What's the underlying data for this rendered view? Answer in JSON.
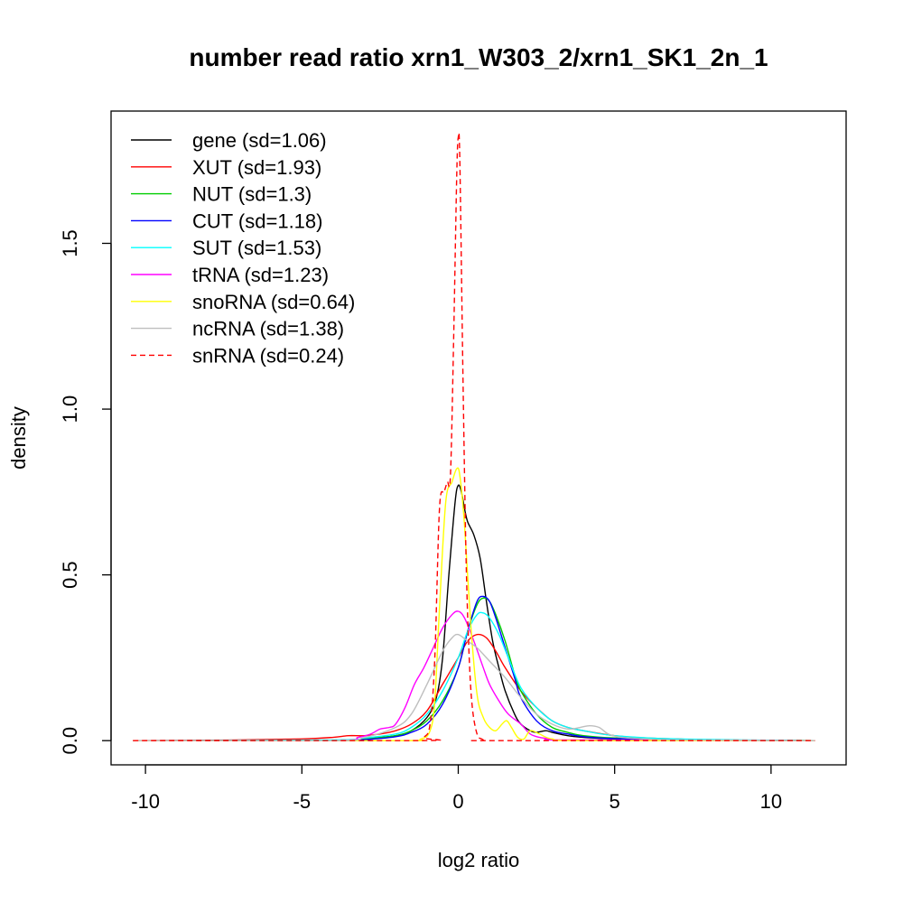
{
  "chart_data": {
    "type": "line",
    "title": "number read ratio xrn1_W303_2/xrn1_SK1_2n_1",
    "xlabel": "log2 ratio",
    "ylabel": "density",
    "xlim": [
      -11.1,
      12.4
    ],
    "ylim": [
      -0.073,
      1.899
    ],
    "xticks": [
      -10,
      -5,
      0,
      5,
      10
    ],
    "yticks": [
      0.0,
      0.5,
      1.0,
      1.5
    ],
    "grid": false,
    "legend_position": "top-left",
    "series": [
      {
        "name": "gene (sd=1.06)",
        "color": "#000000",
        "dash": false,
        "x": [
          -10.4,
          -4,
          -3,
          -2.5,
          -2,
          -1.5,
          -1,
          -0.7,
          -0.5,
          -0.3,
          -0.1,
          0,
          0.1,
          0.2,
          0.3,
          0.5,
          0.7,
          0.9,
          1.1,
          1.3,
          1.5,
          1.8,
          2,
          2.3,
          2.5,
          2.8,
          3,
          3.5,
          4,
          5,
          7,
          11.4
        ],
        "y": [
          0,
          0,
          0.005,
          0.01,
          0.015,
          0.03,
          0.07,
          0.13,
          0.25,
          0.5,
          0.72,
          0.77,
          0.75,
          0.7,
          0.66,
          0.62,
          0.55,
          0.42,
          0.3,
          0.22,
          0.15,
          0.08,
          0.05,
          0.03,
          0.025,
          0.03,
          0.025,
          0.015,
          0.01,
          0.005,
          0.002,
          0
        ]
      },
      {
        "name": "XUT (sd=1.93)",
        "color": "#ff0000",
        "dash": false,
        "x": [
          -10.4,
          -7,
          -5,
          -4,
          -3.5,
          -3,
          -2.5,
          -2,
          -1.5,
          -1,
          -0.5,
          0,
          0.3,
          0.6,
          0.9,
          1.2,
          1.5,
          2,
          2.5,
          3,
          3.5,
          4,
          5,
          6,
          7,
          8,
          11.4
        ],
        "y": [
          0,
          0.002,
          0.005,
          0.01,
          0.015,
          0.015,
          0.02,
          0.03,
          0.05,
          0.09,
          0.17,
          0.25,
          0.3,
          0.32,
          0.31,
          0.27,
          0.22,
          0.15,
          0.1,
          0.06,
          0.04,
          0.03,
          0.015,
          0.008,
          0.005,
          0.002,
          0
        ]
      },
      {
        "name": "NUT (sd=1.3)",
        "color": "#00cd00",
        "dash": false,
        "x": [
          -10.4,
          -4,
          -3,
          -2,
          -1.5,
          -1,
          -0.5,
          0,
          0.3,
          0.6,
          0.8,
          1,
          1.2,
          1.5,
          1.8,
          2,
          2.5,
          3,
          3.5,
          4,
          5,
          7,
          11.4
        ],
        "y": [
          0,
          0,
          0.005,
          0.015,
          0.03,
          0.06,
          0.12,
          0.22,
          0.33,
          0.41,
          0.43,
          0.42,
          0.38,
          0.3,
          0.2,
          0.15,
          0.08,
          0.04,
          0.025,
          0.015,
          0.008,
          0.003,
          0
        ]
      },
      {
        "name": "CUT (sd=1.18)",
        "color": "#0000ff",
        "dash": false,
        "x": [
          -10.4,
          -4,
          -3,
          -2,
          -1.5,
          -1,
          -0.5,
          0,
          0.3,
          0.6,
          0.8,
          1,
          1.2,
          1.5,
          1.8,
          2,
          2.5,
          3,
          3.5,
          4,
          5,
          7,
          11.4
        ],
        "y": [
          0,
          0,
          0.003,
          0.012,
          0.025,
          0.05,
          0.11,
          0.22,
          0.33,
          0.42,
          0.435,
          0.42,
          0.37,
          0.28,
          0.19,
          0.13,
          0.06,
          0.03,
          0.02,
          0.012,
          0.006,
          0.002,
          0
        ]
      },
      {
        "name": "SUT (sd=1.53)",
        "color": "#00ffff",
        "dash": false,
        "x": [
          -10.4,
          -4,
          -3,
          -2,
          -1.5,
          -1,
          -0.5,
          0,
          0.3,
          0.6,
          0.8,
          1,
          1.3,
          1.6,
          2,
          2.5,
          3,
          3.5,
          4,
          5,
          7,
          11.4
        ],
        "y": [
          0,
          0.002,
          0.008,
          0.02,
          0.04,
          0.08,
          0.15,
          0.25,
          0.33,
          0.38,
          0.385,
          0.37,
          0.32,
          0.25,
          0.16,
          0.1,
          0.06,
          0.04,
          0.03,
          0.015,
          0.005,
          0
        ]
      },
      {
        "name": "tRNA (sd=1.23)",
        "color": "#ff00ff",
        "dash": false,
        "x": [
          -10.4,
          -4,
          -3.2,
          -2.8,
          -2.5,
          -2.2,
          -2,
          -1.7,
          -1.4,
          -1.1,
          -0.8,
          -0.5,
          -0.2,
          0,
          0.2,
          0.5,
          0.8,
          1,
          1.3,
          1.6,
          2,
          2.3,
          2.6,
          3,
          3.5,
          11.4
        ],
        "y": [
          0,
          0,
          0.01,
          0.02,
          0.035,
          0.04,
          0.05,
          0.1,
          0.17,
          0.22,
          0.28,
          0.34,
          0.38,
          0.39,
          0.37,
          0.3,
          0.22,
          0.17,
          0.12,
          0.08,
          0.05,
          0.02,
          0.01,
          0.005,
          0.002,
          0
        ]
      },
      {
        "name": "snoRNA (sd=0.64)",
        "color": "#ffff00",
        "dash": false,
        "x": [
          -10.4,
          -2,
          -1.2,
          -0.9,
          -0.75,
          -0.6,
          -0.4,
          -0.2,
          -0.05,
          0.05,
          0.2,
          0.4,
          0.6,
          0.8,
          1,
          1.2,
          1.4,
          1.55,
          1.7,
          1.9,
          2.1,
          2.3,
          2.6,
          3,
          4,
          11.4
        ],
        "y": [
          0,
          0,
          0.005,
          0.03,
          0.12,
          0.4,
          0.72,
          0.78,
          0.82,
          0.8,
          0.65,
          0.35,
          0.14,
          0.07,
          0.04,
          0.03,
          0.05,
          0.06,
          0.04,
          0.01,
          0.005,
          0.03,
          0.02,
          0.005,
          0,
          0
        ]
      },
      {
        "name": "ncRNA (sd=1.38)",
        "color": "#bebebe",
        "dash": false,
        "x": [
          -10.4,
          -4,
          -3,
          -2,
          -1.5,
          -1,
          -0.5,
          -0.2,
          0,
          0.3,
          0.6,
          1,
          1.5,
          2,
          2.5,
          3,
          3.5,
          3.9,
          4.2,
          4.5,
          4.8,
          5.2,
          6,
          7,
          11.4
        ],
        "y": [
          0,
          0,
          0.01,
          0.04,
          0.08,
          0.17,
          0.27,
          0.31,
          0.32,
          0.3,
          0.28,
          0.24,
          0.19,
          0.13,
          0.08,
          0.05,
          0.035,
          0.04,
          0.045,
          0.04,
          0.02,
          0.01,
          0.005,
          0.002,
          0
        ]
      },
      {
        "name": "snRNA (sd=0.24)",
        "color": "#ff0000",
        "dash": true,
        "x": [
          -10.4,
          -1.3,
          -1.1,
          -0.9,
          -0.75,
          -0.6,
          -0.45,
          -0.35,
          -0.25,
          -0.15,
          -0.05,
          0,
          0.05,
          0.15,
          0.25,
          0.35,
          0.45,
          0.6,
          0.75,
          0.9,
          1.2,
          11.4
        ],
        "y": [
          0,
          0,
          0.01,
          0.05,
          0.25,
          0.7,
          0.75,
          0.78,
          0.8,
          1.2,
          1.7,
          1.82,
          1.75,
          1.1,
          0.55,
          0.25,
          0.1,
          0.02,
          0.005,
          0,
          0,
          0
        ]
      }
    ]
  }
}
